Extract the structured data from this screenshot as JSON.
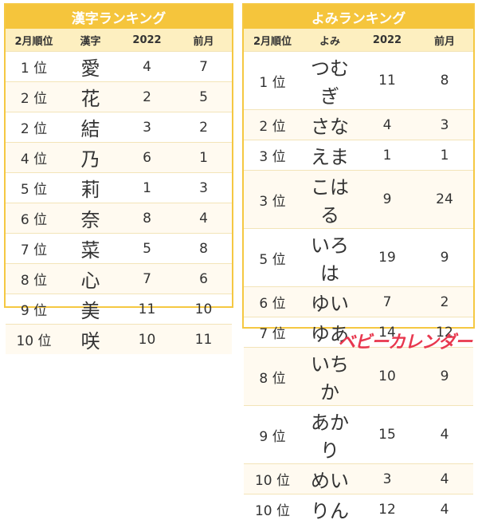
{
  "tables": [
    {
      "title": "漢字ランキング",
      "header": [
        "2月順位",
        "漢字",
        "2022",
        "前月"
      ],
      "rows": [
        [
          "1 位",
          "愛",
          4,
          7
        ],
        [
          "2 位",
          "花",
          2,
          5
        ],
        [
          "2 位",
          "結",
          3,
          2
        ],
        [
          "4 位",
          "乃",
          6,
          1
        ],
        [
          "5 位",
          "莉",
          1,
          3
        ],
        [
          "6 位",
          "奈",
          8,
          4
        ],
        [
          "7 位",
          "菜",
          5,
          8
        ],
        [
          "8 位",
          "心",
          7,
          6
        ],
        [
          "9 位",
          "美",
          11,
          10
        ],
        [
          "10 位",
          "咲",
          10,
          11
        ]
      ]
    },
    {
      "title": "よみランキング",
      "header": [
        "2月順位",
        "よみ",
        "2022",
        "前月"
      ],
      "rows": [
        [
          "1 位",
          "つむぎ",
          11,
          8
        ],
        [
          "2 位",
          "さな",
          4,
          3
        ],
        [
          "3 位",
          "えま",
          1,
          1
        ],
        [
          "3 位",
          "こはる",
          9,
          24
        ],
        [
          "5 位",
          "いろは",
          19,
          9
        ],
        [
          "6 位",
          "ゆい",
          7,
          2
        ],
        [
          "7 位",
          "ゆあ",
          14,
          12
        ],
        [
          "8 位",
          "いちか",
          10,
          9
        ],
        [
          "9 位",
          "あかり",
          15,
          4
        ],
        [
          "10 位",
          "めい",
          3,
          4
        ],
        [
          "10 位",
          "りん",
          12,
          4
        ]
      ]
    }
  ],
  "logo": "ベビーカレンダー"
}
